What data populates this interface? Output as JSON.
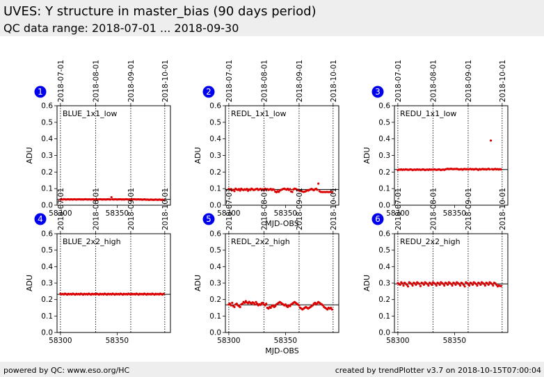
{
  "header": {
    "title": "UVES: Y structure in master_bias (90 days period)",
    "subtitle": "QC data range: 2018-07-01 ... 2018-09-30"
  },
  "footer": {
    "left": "powered by QC: www.eso.org/HC",
    "right": "created by trendPlotter v3.7 on 2018-10-15T07:00:04"
  },
  "colors": {
    "points": "#dd0000",
    "badge": "#0000ee",
    "header_bg": "#eeeeee"
  },
  "chart_data": [
    {
      "type": "scatter",
      "badge": "1",
      "label": "BLUE_1x1_low",
      "ylabel": "ADU",
      "xlabel": "",
      "xlim": [
        58297,
        58397
      ],
      "ylim": [
        0,
        0.6
      ],
      "xticks": [
        58300,
        58350
      ],
      "yticks": [
        0.0,
        0.1,
        0.2,
        0.3,
        0.4,
        0.5,
        0.6
      ],
      "date_ticks": [
        {
          "mjd": 58300,
          "label": "2018-07-01"
        },
        {
          "mjd": 58331,
          "label": "2018-08-01"
        },
        {
          "mjd": 58362,
          "label": "2018-09-01"
        },
        {
          "mjd": 58392,
          "label": "2018-10-01"
        }
      ],
      "reference_line": 0.035,
      "x_start": 58300,
      "x_end": 58391,
      "values": [
        0.034,
        0.035,
        0.034,
        0.036,
        0.035,
        0.034,
        0.035,
        0.036,
        0.034,
        0.035,
        0.035,
        0.034,
        0.036,
        0.035,
        0.034,
        0.035,
        0.035,
        0.036,
        0.034,
        0.035,
        0.034,
        0.035,
        0.036,
        0.035,
        0.034,
        0.035,
        0.035,
        0.034,
        0.035,
        0.036,
        0.034,
        0.035,
        0.035,
        0.034,
        0.035,
        0.036,
        0.035,
        0.034,
        0.035,
        0.035,
        0.034,
        0.035,
        0.036,
        0.035,
        0.034,
        0.048,
        0.035,
        0.034,
        0.036,
        0.035,
        0.034,
        0.035,
        0.035,
        0.036,
        0.034,
        0.035,
        0.034,
        0.035,
        0.036,
        0.035,
        0.034,
        0.035,
        0.035,
        0.034,
        0.035,
        0.036,
        0.035,
        0.034,
        0.035,
        0.035,
        0.034,
        0.035,
        0.033,
        0.034,
        0.035,
        0.034,
        0.033,
        0.034,
        0.032,
        0.033,
        0.034,
        0.033,
        0.032,
        0.033,
        0.034,
        0.033,
        0.032,
        0.034,
        0.033,
        0.032,
        0.033,
        0.032
      ]
    },
    {
      "type": "scatter",
      "badge": "2",
      "label": "REDL_1x1_low",
      "ylabel": "ADU",
      "xlabel": "MJD-OBS",
      "xlim": [
        58297,
        58397
      ],
      "ylim": [
        0,
        0.6
      ],
      "xticks": [
        58300,
        58350
      ],
      "yticks": [
        0.0,
        0.1,
        0.2,
        0.3,
        0.4,
        0.5,
        0.6
      ],
      "date_ticks": [
        {
          "mjd": 58300,
          "label": "2018-07-01"
        },
        {
          "mjd": 58331,
          "label": "2018-08-01"
        },
        {
          "mjd": 58362,
          "label": "2018-09-01"
        },
        {
          "mjd": 58392,
          "label": "2018-10-01"
        }
      ],
      "reference_line": 0.095,
      "x_start": 58300,
      "x_end": 58391,
      "values": [
        0.098,
        0.094,
        0.097,
        0.09,
        0.093,
        0.085,
        0.1,
        0.095,
        0.092,
        0.097,
        0.088,
        0.099,
        0.094,
        0.091,
        0.096,
        0.093,
        0.098,
        0.087,
        0.095,
        0.092,
        0.1,
        0.096,
        0.091,
        0.094,
        0.097,
        0.099,
        0.092,
        0.095,
        0.098,
        0.093,
        0.096,
        0.09,
        0.1,
        0.094,
        0.097,
        0.092,
        0.095,
        0.098,
        0.091,
        0.096,
        0.093,
        0.082,
        0.078,
        0.085,
        0.08,
        0.088,
        0.092,
        0.095,
        0.098,
        0.1,
        0.096,
        0.094,
        0.099,
        0.092,
        0.097,
        0.083,
        0.08,
        0.095,
        0.1,
        0.098,
        0.094,
        0.092,
        0.09,
        0.087,
        0.085,
        0.083,
        0.08,
        0.082,
        0.085,
        0.09,
        0.088,
        0.092,
        0.095,
        0.098,
        0.094,
        0.09,
        0.096,
        0.099,
        0.093,
        0.13,
        0.085,
        0.08,
        0.08,
        0.079,
        0.08,
        0.079,
        0.08,
        0.08,
        0.079,
        0.08,
        0.079,
        0.08
      ]
    },
    {
      "type": "scatter",
      "badge": "3",
      "label": "REDU_1x1_low",
      "ylabel": "ADU",
      "xlabel": "",
      "xlim": [
        58297,
        58397
      ],
      "ylim": [
        0,
        0.6
      ],
      "xticks": [
        58300,
        58350
      ],
      "yticks": [
        0.0,
        0.1,
        0.2,
        0.3,
        0.4,
        0.5,
        0.6
      ],
      "date_ticks": [
        {
          "mjd": 58300,
          "label": "2018-07-01"
        },
        {
          "mjd": 58331,
          "label": "2018-08-01"
        },
        {
          "mjd": 58362,
          "label": "2018-09-01"
        },
        {
          "mjd": 58392,
          "label": "2018-10-01"
        }
      ],
      "reference_line": 0.215,
      "x_start": 58300,
      "x_end": 58391,
      "values": [
        0.212,
        0.215,
        0.214,
        0.216,
        0.213,
        0.215,
        0.214,
        0.216,
        0.215,
        0.213,
        0.214,
        0.216,
        0.215,
        0.212,
        0.214,
        0.215,
        0.213,
        0.216,
        0.214,
        0.215,
        0.213,
        0.214,
        0.216,
        0.215,
        0.212,
        0.214,
        0.215,
        0.213,
        0.216,
        0.214,
        0.215,
        0.214,
        0.216,
        0.215,
        0.213,
        0.214,
        0.216,
        0.215,
        0.212,
        0.214,
        0.215,
        0.213,
        0.216,
        0.218,
        0.22,
        0.217,
        0.219,
        0.22,
        0.218,
        0.217,
        0.219,
        0.218,
        0.22,
        0.217,
        0.215,
        0.216,
        0.218,
        0.214,
        0.217,
        0.219,
        0.216,
        0.218,
        0.215,
        0.217,
        0.219,
        0.216,
        0.218,
        0.215,
        0.217,
        0.219,
        0.216,
        0.213,
        0.218,
        0.215,
        0.217,
        0.219,
        0.216,
        0.218,
        0.215,
        0.217,
        0.22,
        0.216,
        0.39,
        0.218,
        0.215,
        0.217,
        0.219,
        0.216,
        0.218,
        0.215,
        0.217,
        0.216
      ]
    },
    {
      "type": "scatter",
      "badge": "4",
      "label": "BLUE_2x2_high",
      "ylabel": "ADU",
      "xlabel": "",
      "xlim": [
        58297,
        58397
      ],
      "ylim": [
        0,
        0.6
      ],
      "xticks": [
        58300,
        58350
      ],
      "yticks": [
        0.0,
        0.1,
        0.2,
        0.3,
        0.4,
        0.5,
        0.6
      ],
      "date_ticks": [
        {
          "mjd": 58300,
          "label": "2018-07-01"
        },
        {
          "mjd": 58331,
          "label": "2018-08-01"
        },
        {
          "mjd": 58362,
          "label": "2018-09-01"
        },
        {
          "mjd": 58392,
          "label": "2018-10-01"
        }
      ],
      "reference_line": 0.232,
      "x_start": 58300,
      "x_end": 58391,
      "values": [
        0.235,
        0.232,
        0.234,
        0.231,
        0.236,
        0.233,
        0.23,
        0.235,
        0.232,
        0.234,
        0.231,
        0.236,
        0.233,
        0.23,
        0.235,
        0.232,
        0.234,
        0.231,
        0.236,
        0.233,
        0.23,
        0.235,
        0.232,
        0.234,
        0.231,
        0.236,
        0.233,
        0.23,
        0.235,
        0.232,
        0.234,
        0.231,
        0.236,
        0.233,
        0.23,
        0.235,
        0.232,
        0.234,
        0.231,
        0.236,
        0.233,
        0.23,
        0.235,
        0.232,
        0.234,
        0.231,
        0.236,
        0.233,
        0.23,
        0.235,
        0.232,
        0.234,
        0.231,
        0.236,
        0.233,
        0.23,
        0.235,
        0.232,
        0.234,
        0.231,
        0.236,
        0.233,
        0.23,
        0.235,
        0.232,
        0.234,
        0.231,
        0.236,
        0.233,
        0.23,
        0.235,
        0.232,
        0.234,
        0.231,
        0.236,
        0.233,
        0.23,
        0.235,
        0.232,
        0.234,
        0.231,
        0.236,
        0.233,
        0.23,
        0.235,
        0.232,
        0.234,
        0.231,
        0.236,
        0.233,
        0.23,
        0.235
      ]
    },
    {
      "type": "scatter",
      "badge": "5",
      "label": "REDL_2x2_high",
      "ylabel": "ADU",
      "xlabel": "MJD-OBS",
      "xlim": [
        58297,
        58397
      ],
      "ylim": [
        0,
        0.6
      ],
      "xticks": [
        58300,
        58350
      ],
      "yticks": [
        0.0,
        0.1,
        0.2,
        0.3,
        0.4,
        0.5,
        0.6
      ],
      "date_ticks": [
        {
          "mjd": 58300,
          "label": "2018-07-01"
        },
        {
          "mjd": 58331,
          "label": "2018-08-01"
        },
        {
          "mjd": 58362,
          "label": "2018-09-01"
        },
        {
          "mjd": 58392,
          "label": "2018-10-01"
        }
      ],
      "reference_line": 0.168,
      "x_start": 58300,
      "x_end": 58391,
      "values": [
        0.17,
        0.175,
        0.165,
        0.18,
        0.16,
        0.155,
        0.17,
        0.175,
        0.165,
        0.16,
        0.155,
        0.17,
        0.175,
        0.185,
        0.18,
        0.19,
        0.182,
        0.178,
        0.186,
        0.18,
        0.175,
        0.183,
        0.179,
        0.17,
        0.185,
        0.175,
        0.165,
        0.172,
        0.168,
        0.178,
        0.18,
        0.17,
        0.165,
        0.175,
        0.15,
        0.145,
        0.155,
        0.15,
        0.16,
        0.165,
        0.155,
        0.16,
        0.17,
        0.175,
        0.18,
        0.185,
        0.18,
        0.175,
        0.17,
        0.165,
        0.17,
        0.16,
        0.155,
        0.165,
        0.16,
        0.17,
        0.175,
        0.18,
        0.185,
        0.18,
        0.175,
        0.17,
        0.165,
        0.15,
        0.145,
        0.14,
        0.145,
        0.15,
        0.155,
        0.15,
        0.145,
        0.15,
        0.155,
        0.16,
        0.165,
        0.175,
        0.18,
        0.17,
        0.178,
        0.185,
        0.18,
        0.175,
        0.17,
        0.165,
        0.155,
        0.15,
        0.145,
        0.14,
        0.15,
        0.145,
        0.15,
        0.14
      ]
    },
    {
      "type": "scatter",
      "badge": "6",
      "label": "REDU_2x2_high",
      "ylabel": "ADU",
      "xlabel": "",
      "xlim": [
        58297,
        58397
      ],
      "ylim": [
        0,
        0.6
      ],
      "xticks": [
        58300,
        58350
      ],
      "yticks": [
        0.0,
        0.1,
        0.2,
        0.3,
        0.4,
        0.5,
        0.6
      ],
      "date_ticks": [
        {
          "mjd": 58300,
          "label": "2018-07-01"
        },
        {
          "mjd": 58331,
          "label": "2018-08-01"
        },
        {
          "mjd": 58362,
          "label": "2018-09-01"
        },
        {
          "mjd": 58392,
          "label": "2018-10-01"
        }
      ],
      "reference_line": 0.295,
      "x_start": 58300,
      "x_end": 58391,
      "values": [
        0.3,
        0.295,
        0.29,
        0.305,
        0.298,
        0.285,
        0.302,
        0.296,
        0.29,
        0.28,
        0.305,
        0.3,
        0.295,
        0.285,
        0.302,
        0.298,
        0.29,
        0.305,
        0.3,
        0.295,
        0.282,
        0.302,
        0.298,
        0.29,
        0.305,
        0.3,
        0.295,
        0.285,
        0.302,
        0.298,
        0.29,
        0.305,
        0.3,
        0.295,
        0.285,
        0.302,
        0.298,
        0.29,
        0.305,
        0.3,
        0.295,
        0.285,
        0.302,
        0.298,
        0.29,
        0.305,
        0.3,
        0.295,
        0.285,
        0.302,
        0.298,
        0.29,
        0.305,
        0.3,
        0.295,
        0.285,
        0.302,
        0.298,
        0.29,
        0.28,
        0.305,
        0.3,
        0.295,
        0.285,
        0.302,
        0.298,
        0.29,
        0.305,
        0.3,
        0.295,
        0.285,
        0.302,
        0.298,
        0.29,
        0.305,
        0.3,
        0.295,
        0.285,
        0.302,
        0.298,
        0.29,
        0.305,
        0.3,
        0.295,
        0.285,
        0.302,
        0.298,
        0.29,
        0.28,
        0.285,
        0.283,
        0.282
      ]
    }
  ]
}
